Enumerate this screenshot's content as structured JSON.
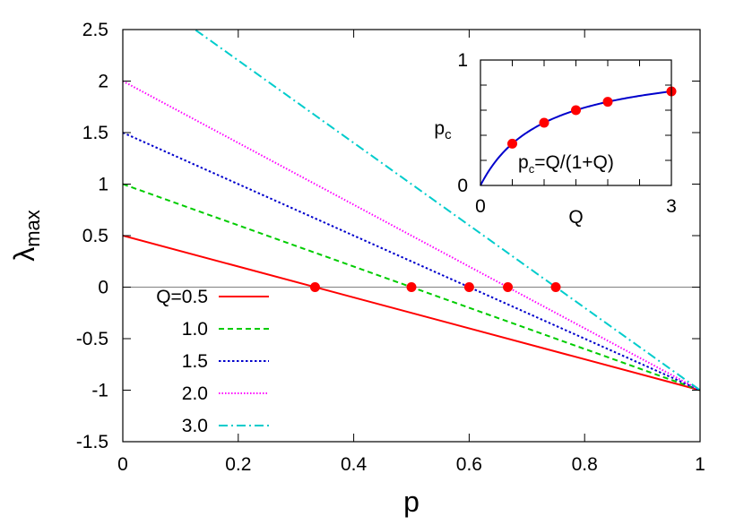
{
  "chart_data": [
    {
      "type": "line",
      "title": "",
      "xlabel": "p",
      "ylabel_main": "λ",
      "ylabel_sub": "max",
      "xlim": [
        0,
        1
      ],
      "ylim": [
        -1.5,
        2.5
      ],
      "xticks": [
        "0",
        "0.2",
        "0.4",
        "0.6",
        "0.8",
        "1"
      ],
      "yticks": [
        "2.5",
        "2",
        "1.5",
        "1",
        "0.5",
        "0",
        "-0.5",
        "-1",
        "-1.5"
      ],
      "zero_line": true,
      "legend_position": "bottom-left",
      "series": [
        {
          "name": "Q=0.5",
          "color": "#ff0000",
          "dash": "solid",
          "x": [
            0,
            1
          ],
          "y": [
            0.5,
            -1
          ]
        },
        {
          "name": "1.0",
          "color": "#00cc00",
          "dash": "dashed",
          "x": [
            0,
            1
          ],
          "y": [
            1.0,
            -1
          ]
        },
        {
          "name": "1.5",
          "color": "#0000cc",
          "dash": "dotted",
          "x": [
            0,
            1
          ],
          "y": [
            1.5,
            -1
          ]
        },
        {
          "name": "2.0",
          "color": "#ff00ff",
          "dash": "fine-dotted",
          "x": [
            0,
            1
          ],
          "y": [
            2.0,
            -1
          ]
        },
        {
          "name": "3.0",
          "color": "#00cccc",
          "dash": "dash-dot",
          "x": [
            0,
            1
          ],
          "y": [
            3.0,
            -1
          ]
        }
      ],
      "critical_points": {
        "color": "#ff0000",
        "x": [
          0.333,
          0.5,
          0.6,
          0.667,
          0.75
        ],
        "y": [
          0,
          0,
          0,
          0,
          0
        ]
      }
    },
    {
      "type": "line",
      "title": "",
      "xlabel": "Q",
      "ylabel_main": "p",
      "ylabel_sub": "c",
      "xlim": [
        0,
        3
      ],
      "ylim": [
        0,
        1
      ],
      "xticks": [
        "0",
        "3"
      ],
      "yticks": [
        "1",
        "0"
      ],
      "curve": {
        "name_main": "p",
        "name_sub": "c",
        "name_rest": "=Q/(1+Q)",
        "color": "#0000cc"
      },
      "points": {
        "color": "#ff0000",
        "x": [
          0.5,
          1.0,
          1.5,
          2.0,
          3.0
        ],
        "y": [
          0.333,
          0.5,
          0.6,
          0.667,
          0.75
        ]
      }
    }
  ]
}
